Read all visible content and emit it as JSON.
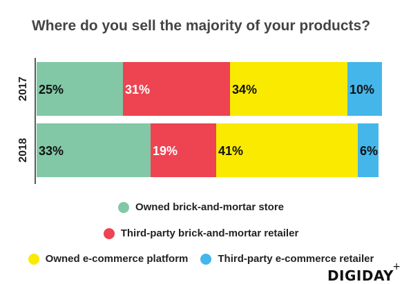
{
  "title": "Where do you sell the majority of your products?",
  "colors": {
    "owned_store": "#82C8A6",
    "third_party_store": "#EE4351",
    "owned_ecommerce": "#FAEA00",
    "third_party_ecommerce": "#45B6EA"
  },
  "legend": [
    {
      "label": "Owned brick-and-mortar store",
      "color": "#82C8A6"
    },
    {
      "label": "Third-party brick-and-mortar retailer",
      "color": "#EE4351"
    },
    {
      "label": "Owned e-commerce platform",
      "color": "#FAEA00"
    },
    {
      "label": "Third-party e-commerce retailer",
      "color": "#45B6EA"
    }
  ],
  "logo": {
    "text": "DIGIDAY",
    "plus": "+"
  },
  "chart_data": {
    "type": "bar",
    "orientation": "horizontal",
    "stacked": true,
    "percent": true,
    "title": "Where do you sell the majority of your products?",
    "categories": [
      "2017",
      "2018"
    ],
    "series": [
      {
        "name": "Owned brick-and-mortar store",
        "color": "#82C8A6",
        "values": [
          25,
          33
        ],
        "labels": [
          "25%",
          "33%"
        ]
      },
      {
        "name": "Third-party brick-and-mortar retailer",
        "color": "#EE4351",
        "values": [
          31,
          19
        ],
        "labels": [
          "31%",
          "19%"
        ]
      },
      {
        "name": "Owned e-commerce platform",
        "color": "#FAEA00",
        "values": [
          34,
          41
        ],
        "labels": [
          "34%",
          "41%"
        ]
      },
      {
        "name": "Third-party e-commerce retailer",
        "color": "#45B6EA",
        "values": [
          10,
          6
        ],
        "labels": [
          "10%",
          "6%"
        ]
      }
    ],
    "xlim": [
      0,
      100
    ],
    "grid": false,
    "legend_position": "bottom"
  }
}
